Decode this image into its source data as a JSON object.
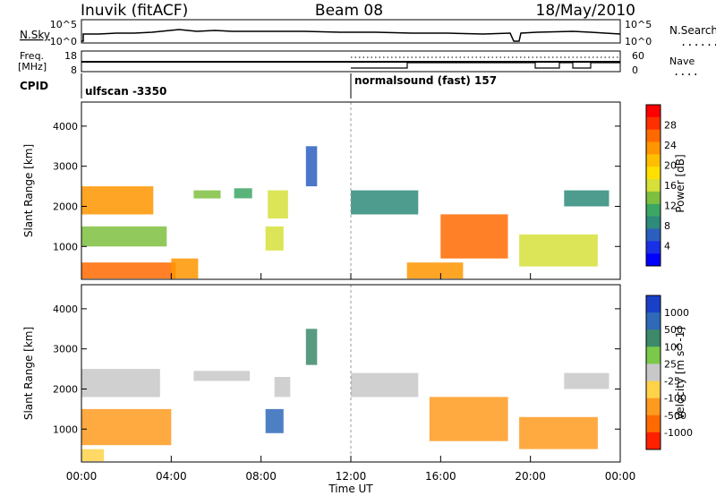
{
  "header": {
    "station": "Inuvik (fitACF)",
    "beam": "Beam 08",
    "date": "18/May/2010"
  },
  "top_strips": {
    "nsky_label": "N.Sky",
    "nsky_ticks": [
      "10^5",
      "10^0"
    ],
    "nsearch_label": "N.Search",
    "nsearch_ticks": [
      "10^5",
      "10^0"
    ],
    "freq_label": "Freq.",
    "freq_unit": "[MHz]",
    "freq_ticks": [
      "18",
      "8"
    ],
    "nave_label": "Nave",
    "nave_ticks": [
      "60",
      "0"
    ],
    "cpid_label": "CPID",
    "cpid_segments": [
      {
        "start_h": 0,
        "label": "ulfscan -3350"
      },
      {
        "start_h": 12,
        "label": "normalsound (fast) 157"
      }
    ]
  },
  "chart_data": [
    {
      "type": "heatmap",
      "panel": "power",
      "ylabel": "Slant Range [km]",
      "xlabel": "Time UT",
      "x_ticks": [
        "00:00",
        "04:00",
        "08:00",
        "12:00",
        "16:00",
        "20:00",
        "00:00"
      ],
      "xlim_hours": [
        0,
        24
      ],
      "y_ticks": [
        1000,
        2000,
        3000,
        4000
      ],
      "ylim": [
        180,
        4600
      ],
      "colorbar": {
        "label": "Power [dB]",
        "ticks": [
          "28",
          "24",
          "20",
          "16",
          "12",
          "8",
          "4"
        ],
        "colors": [
          "#ff0000",
          "#ff3000",
          "#ff6a00",
          "#ff9500",
          "#ffbf00",
          "#ffe000",
          "#d5e03a",
          "#7fbf3f",
          "#3ca664",
          "#2e8b7a",
          "#2b5fbf",
          "#1a30e6",
          "#0000ff"
        ]
      },
      "regions": [
        {
          "t0": 0.0,
          "t1": 4.2,
          "r0": 200,
          "r1": 600,
          "v": 26
        },
        {
          "t0": 0.0,
          "t1": 3.8,
          "r0": 1000,
          "r1": 1500,
          "v": 14
        },
        {
          "t0": 0.0,
          "t1": 3.2,
          "r0": 1800,
          "r1": 2500,
          "v": 22
        },
        {
          "t0": 4.0,
          "t1": 5.2,
          "r0": 200,
          "r1": 700,
          "v": 24
        },
        {
          "t0": 5.0,
          "t1": 6.2,
          "r0": 2200,
          "r1": 2400,
          "v": 14
        },
        {
          "t0": 6.8,
          "t1": 7.6,
          "r0": 2200,
          "r1": 2450,
          "v": 12
        },
        {
          "t0": 8.3,
          "t1": 9.2,
          "r0": 1700,
          "r1": 2400,
          "v": 16
        },
        {
          "t0": 8.2,
          "t1": 9.0,
          "r0": 900,
          "r1": 1500,
          "v": 16
        },
        {
          "t0": 10.0,
          "t1": 10.5,
          "r0": 2500,
          "r1": 3500,
          "v": 6
        },
        {
          "t0": 12.0,
          "t1": 15.0,
          "r0": 1800,
          "r1": 2400,
          "v": 10
        },
        {
          "t0": 16.0,
          "t1": 19.0,
          "r0": 700,
          "r1": 1800,
          "v": 26
        },
        {
          "t0": 14.5,
          "t1": 17.0,
          "r0": 200,
          "r1": 600,
          "v": 22
        },
        {
          "t0": 19.5,
          "t1": 23.0,
          "r0": 500,
          "r1": 1300,
          "v": 16
        },
        {
          "t0": 21.5,
          "t1": 23.5,
          "r0": 2000,
          "r1": 2400,
          "v": 10
        }
      ]
    },
    {
      "type": "heatmap",
      "panel": "velocity",
      "ylabel": "Slant Range [km]",
      "xlabel": "Time UT",
      "x_ticks": [
        "00:00",
        "04:00",
        "08:00",
        "12:00",
        "16:00",
        "20:00",
        "00:00"
      ],
      "xlim_hours": [
        0,
        24
      ],
      "y_ticks": [
        1000,
        2000,
        3000,
        4000
      ],
      "ylim": [
        180,
        4600
      ],
      "colorbar": {
        "label": "Velocity [m s^-1]",
        "ticks": [
          "1000",
          "500",
          "100",
          "25",
          "-25",
          "-100",
          "-500",
          "-1000"
        ],
        "colors": [
          "#1a40c8",
          "#2e6ab8",
          "#3c8a6a",
          "#7ac94a",
          "#c8c8c8",
          "#ffd24a",
          "#ff9a20",
          "#ff6a00",
          "#ff2000"
        ]
      },
      "regions": [
        {
          "t0": 0.0,
          "t1": 4.0,
          "r0": 600,
          "r1": 1500,
          "v": -300
        },
        {
          "t0": 0.0,
          "t1": 3.5,
          "r0": 1800,
          "r1": 2500,
          "v": 0
        },
        {
          "t0": 0.0,
          "t1": 1.0,
          "r0": 200,
          "r1": 500,
          "v": -80
        },
        {
          "t0": 5.0,
          "t1": 7.5,
          "r0": 2200,
          "r1": 2450,
          "v": 0
        },
        {
          "t0": 8.2,
          "t1": 9.0,
          "r0": 900,
          "r1": 1500,
          "v": 500
        },
        {
          "t0": 8.6,
          "t1": 9.3,
          "r0": 1800,
          "r1": 2300,
          "v": 0
        },
        {
          "t0": 10.0,
          "t1": 10.5,
          "r0": 2600,
          "r1": 3500,
          "v": 150
        },
        {
          "t0": 12.0,
          "t1": 15.0,
          "r0": 1800,
          "r1": 2400,
          "v": 0
        },
        {
          "t0": 15.5,
          "t1": 19.0,
          "r0": 700,
          "r1": 1800,
          "v": -500
        },
        {
          "t0": 19.5,
          "t1": 23.0,
          "r0": 500,
          "r1": 1300,
          "v": -300
        },
        {
          "t0": 21.5,
          "t1": 23.5,
          "r0": 2000,
          "r1": 2400,
          "v": 0
        }
      ]
    }
  ]
}
